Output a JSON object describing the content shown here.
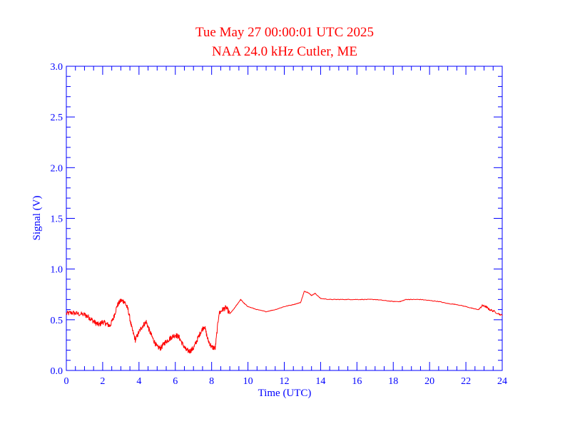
{
  "chart_data": {
    "type": "line",
    "title": "Tue May 27 00:00:01 UTC 2025",
    "subtitle": "NAA 24.0 kHz Cutler, ME",
    "xlabel": "Time (UTC)",
    "ylabel": "Signal (V)",
    "xlim": [
      0,
      24
    ],
    "ylim": [
      0.0,
      3.0
    ],
    "x_ticks": [
      0,
      2,
      4,
      6,
      8,
      10,
      12,
      14,
      16,
      18,
      20,
      22,
      24
    ],
    "x_tick_labels": [
      "0",
      "2",
      "4",
      "6",
      "8",
      "10",
      "12",
      "14",
      "16",
      "18",
      "20",
      "22",
      "24"
    ],
    "y_ticks": [
      0.0,
      0.5,
      1.0,
      1.5,
      2.0,
      2.5,
      3.0
    ],
    "y_tick_labels": [
      "0.0",
      "0.5",
      "1.0",
      "1.5",
      "2.0",
      "2.5",
      "3.0"
    ],
    "grid": false,
    "colors": {
      "axis": "#0000ff",
      "line": "#ff0000",
      "title": "#ff0000"
    },
    "series": [
      {
        "color": "#ff0000",
        "x": [
          0.0,
          0.3,
          0.6,
          1.0,
          1.2,
          1.4,
          1.6,
          1.8,
          2.0,
          2.2,
          2.4,
          2.6,
          2.8,
          3.0,
          3.2,
          3.4,
          3.6,
          3.8,
          4.0,
          4.2,
          4.4,
          4.6,
          4.8,
          5.0,
          5.2,
          5.4,
          5.6,
          5.8,
          6.0,
          6.2,
          6.4,
          6.6,
          6.8,
          7.0,
          7.2,
          7.4,
          7.6,
          7.8,
          8.0,
          8.2,
          8.4,
          8.6,
          8.8,
          9.0,
          9.2,
          9.4,
          9.6,
          9.8,
          10.0,
          10.5,
          11.0,
          11.5,
          12.0,
          12.5,
          12.9,
          13.1,
          13.3,
          13.5,
          13.7,
          14.0,
          14.5,
          15.0,
          15.5,
          16.0,
          16.5,
          17.0,
          17.5,
          18.0,
          18.4,
          18.7,
          19.0,
          19.5,
          20.0,
          20.5,
          21.0,
          21.5,
          22.0,
          22.4,
          22.7,
          22.9,
          23.1,
          23.3,
          23.6,
          24.0
        ],
        "values": [
          0.56,
          0.57,
          0.56,
          0.55,
          0.53,
          0.5,
          0.47,
          0.45,
          0.48,
          0.46,
          0.44,
          0.52,
          0.64,
          0.69,
          0.68,
          0.6,
          0.42,
          0.3,
          0.38,
          0.44,
          0.48,
          0.38,
          0.3,
          0.23,
          0.22,
          0.27,
          0.3,
          0.33,
          0.35,
          0.33,
          0.26,
          0.2,
          0.19,
          0.22,
          0.3,
          0.38,
          0.44,
          0.3,
          0.23,
          0.22,
          0.56,
          0.6,
          0.62,
          0.56,
          0.6,
          0.65,
          0.7,
          0.66,
          0.63,
          0.6,
          0.58,
          0.6,
          0.63,
          0.65,
          0.67,
          0.78,
          0.77,
          0.74,
          0.76,
          0.71,
          0.7,
          0.7,
          0.7,
          0.7,
          0.7,
          0.7,
          0.69,
          0.68,
          0.68,
          0.7,
          0.7,
          0.7,
          0.69,
          0.68,
          0.66,
          0.65,
          0.63,
          0.61,
          0.6,
          0.64,
          0.63,
          0.6,
          0.58,
          0.54
        ]
      }
    ]
  }
}
